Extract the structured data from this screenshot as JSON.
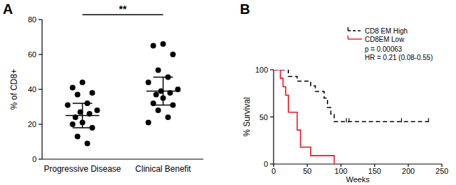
{
  "chart_data": [
    {
      "type": "scatter",
      "panel": "A",
      "ylabel": "% of CD8+",
      "categories": [
        "Progressive Disease",
        "Clinical Benefit"
      ],
      "points": [
        [
          44,
          41,
          38,
          37,
          32,
          31,
          28,
          27,
          26,
          24,
          21,
          20,
          18,
          13,
          9
        ],
        [
          66,
          65,
          60,
          51,
          47,
          44,
          40,
          39,
          38,
          37,
          35,
          32,
          31,
          28,
          24,
          21
        ]
      ],
      "mean": [
        25,
        39
      ],
      "error_low": [
        18,
        31
      ],
      "error_high": [
        32,
        47
      ],
      "annotations": [
        "**"
      ],
      "color": "#000000",
      "ylim": [
        0,
        80
      ],
      "yticks": [
        0,
        20,
        40,
        60,
        80
      ]
    },
    {
      "type": "line",
      "panel": "B",
      "xlabel": "Weeks",
      "ylabel": "% Survival",
      "xlim": [
        0,
        250
      ],
      "xticks": [
        0,
        50,
        100,
        150,
        200,
        250
      ],
      "ylim": [
        0,
        100
      ],
      "yticks": [
        0,
        50,
        100
      ],
      "legend": "upper right",
      "series": [
        {
          "name": "CD8 EM High",
          "color": "#000000",
          "line_style": "dashed",
          "type": "step",
          "x": [
            0,
            22,
            35,
            55,
            62,
            75,
            80,
            85,
            90,
            230
          ],
          "values": [
            100,
            93,
            88,
            83,
            77,
            70,
            60,
            53,
            45,
            45
          ]
        },
        {
          "name": "CD8EM Low",
          "color": "#e8141c",
          "line_style": "solid",
          "type": "step",
          "x": [
            0,
            10,
            14,
            18,
            22,
            35,
            40,
            55,
            90
          ],
          "values": [
            100,
            91,
            82,
            73,
            55,
            36,
            18,
            9,
            0
          ]
        }
      ],
      "censored_x": [
        108,
        112,
        190,
        230
      ],
      "censored_y": [
        45,
        45,
        45,
        45
      ],
      "annotations": [
        "p = 0.00063",
        "HR = 0.21 (0.08-0.55)"
      ]
    }
  ]
}
